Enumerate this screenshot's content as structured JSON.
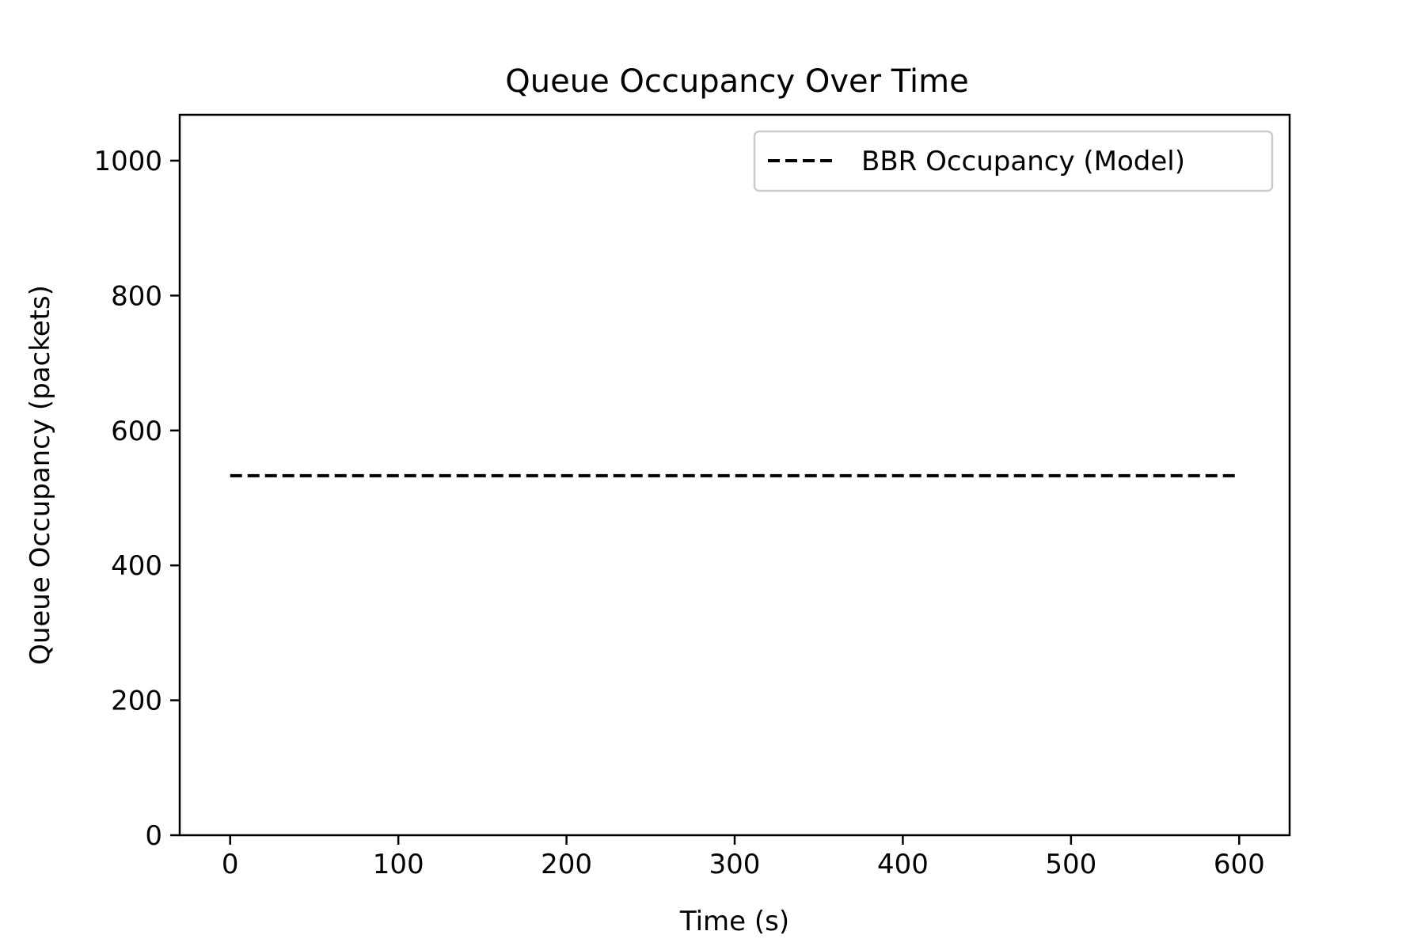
{
  "chart_data": {
    "type": "line",
    "title": "Queue Occupancy Over Time",
    "xlabel": "Time (s)",
    "ylabel": "Queue Occupancy (packets)",
    "xlim": [
      -30,
      630
    ],
    "ylim": [
      0,
      1068
    ],
    "xticks": [
      0,
      100,
      200,
      300,
      400,
      500,
      600
    ],
    "yticks": [
      0,
      200,
      400,
      600,
      800,
      1000
    ],
    "grid": false,
    "legend_position": "upper-right",
    "series": [
      {
        "name": "BBR Occupancy (Model)",
        "style": "dashed",
        "color": "#000000",
        "x": [
          0,
          600
        ],
        "y": [
          533,
          533
        ]
      }
    ]
  }
}
